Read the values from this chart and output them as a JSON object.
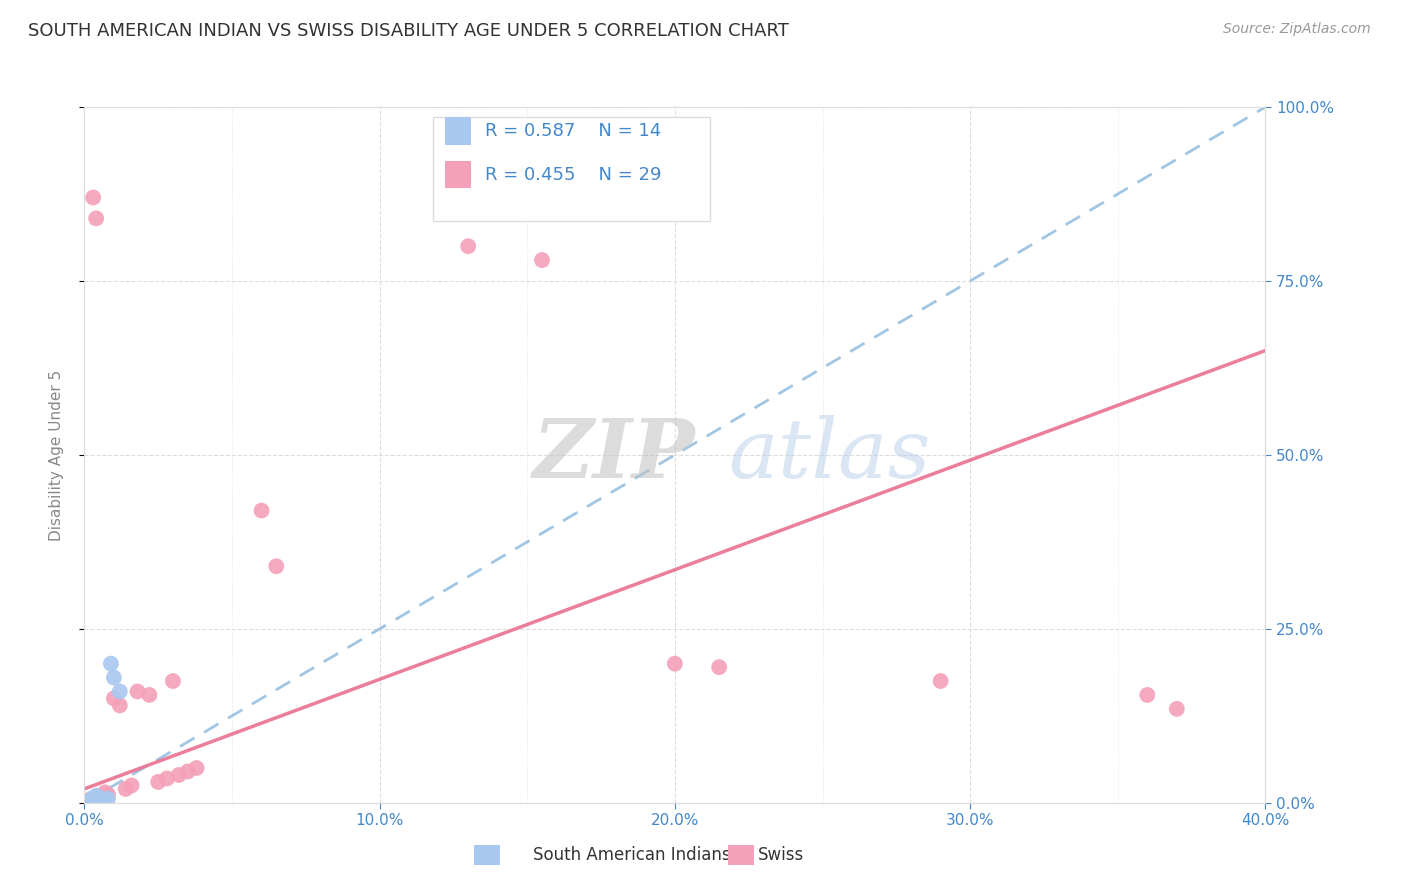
{
  "title": "SOUTH AMERICAN INDIAN VS SWISS DISABILITY AGE UNDER 5 CORRELATION CHART",
  "source": "Source: ZipAtlas.com",
  "ylabel": "Disability Age Under 5",
  "xlim": [
    0.0,
    0.4
  ],
  "ylim": [
    0.0,
    1.0
  ],
  "xtick_vals": [
    0.0,
    0.1,
    0.2,
    0.3,
    0.4
  ],
  "xtick_labels": [
    "0.0%",
    "10.0%",
    "20.0%",
    "30.0%",
    "40.0%"
  ],
  "ytick_vals": [
    0.0,
    0.25,
    0.5,
    0.75,
    1.0
  ],
  "ytick_labels_right": [
    "0.0%",
    "25.0%",
    "50.0%",
    "75.0%",
    "100.0%"
  ],
  "minor_xtick_vals": [
    0.05,
    0.15,
    0.25,
    0.35
  ],
  "bg_color": "#ffffff",
  "grid_color": "#dddddd",
  "legend_r_blue": "0.587",
  "legend_n_blue": "14",
  "legend_r_pink": "0.455",
  "legend_n_pink": "29",
  "blue_scatter_color": "#a8c8f0",
  "pink_scatter_color": "#f4a0b8",
  "blue_line_color": "#90bce0",
  "pink_line_color": "#e87090",
  "tick_color": "#4488cc",
  "title_color": "#333333",
  "axis_label_color": "#888888",
  "source_color": "#999999",
  "blue_scatter_x": [
    0.001,
    0.002,
    0.003,
    0.003,
    0.004,
    0.004,
    0.005,
    0.005,
    0.006,
    0.007,
    0.008,
    0.009,
    0.01,
    0.012
  ],
  "blue_scatter_y": [
    0.002,
    0.003,
    0.005,
    0.007,
    0.01,
    0.003,
    0.005,
    0.008,
    0.003,
    0.004,
    0.006,
    0.2,
    0.18,
    0.16
  ],
  "pink_scatter_x": [
    0.001,
    0.002,
    0.003,
    0.004,
    0.005,
    0.006,
    0.007,
    0.008,
    0.01,
    0.012,
    0.014,
    0.016,
    0.018,
    0.022,
    0.025,
    0.028,
    0.03,
    0.032,
    0.035,
    0.038,
    0.06,
    0.065,
    0.13,
    0.155,
    0.2,
    0.215,
    0.29,
    0.36,
    0.37
  ],
  "pink_scatter_y": [
    0.003,
    0.005,
    0.87,
    0.84,
    0.01,
    0.008,
    0.015,
    0.012,
    0.15,
    0.14,
    0.02,
    0.025,
    0.16,
    0.155,
    0.03,
    0.035,
    0.175,
    0.04,
    0.045,
    0.05,
    0.42,
    0.34,
    0.8,
    0.78,
    0.2,
    0.195,
    0.175,
    0.155,
    0.135
  ],
  "blue_line_x0": 0.0,
  "blue_line_y0": 0.0,
  "blue_line_x1": 0.4,
  "blue_line_y1": 1.0,
  "pink_line_x0": 0.0,
  "pink_line_y0": 0.02,
  "pink_line_x1": 0.4,
  "pink_line_y1": 0.65
}
